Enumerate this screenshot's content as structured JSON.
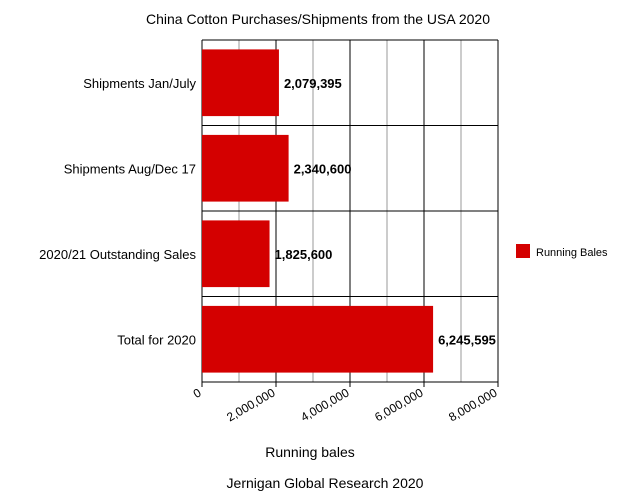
{
  "chart_data": {
    "type": "bar",
    "orientation": "horizontal",
    "title": "China Cotton Purchases/Shipments from the USA 2020",
    "xlabel": "Running bales",
    "ylabel": "",
    "footer": "Jernigan Global Research  2020",
    "categories": [
      "Shipments Jan/July",
      "Shipments Aug/Dec 17",
      "2020/21 Outstanding Sales",
      "Total for 2020"
    ],
    "series": [
      {
        "name": "Running Bales",
        "values": [
          2079395,
          2340600,
          1825600,
          6245595
        ],
        "data_labels": [
          "2,079,395",
          "2,340,600",
          "1,825,600",
          "6,245,595"
        ]
      }
    ],
    "xlim": [
      0,
      8000000
    ],
    "xticks": [
      0,
      2000000,
      4000000,
      6000000,
      8000000
    ],
    "xtick_labels": [
      "0",
      "2,000,000",
      "4,000,000",
      "6,000,000",
      "8,000,000"
    ],
    "grid": true,
    "legend": "right",
    "colors": {
      "bar": "#d40000",
      "grid_major": "#000000",
      "grid_minor": "#9a9a9a"
    }
  }
}
